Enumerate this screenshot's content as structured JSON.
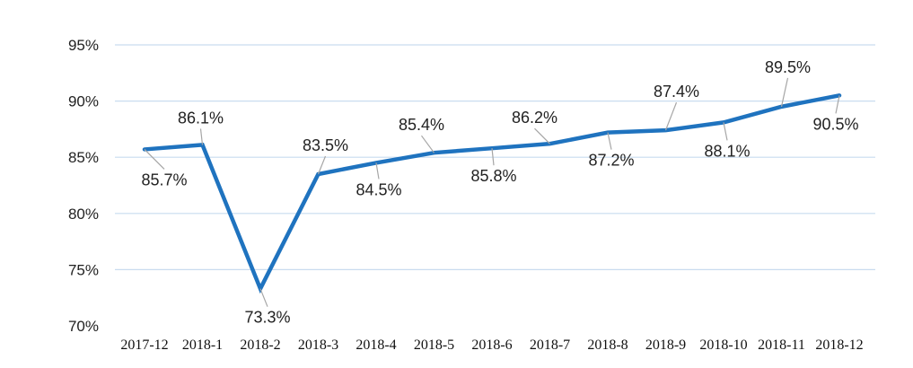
{
  "chart_data": {
    "type": "line",
    "title": "",
    "xlabel": "",
    "ylabel": "",
    "categories": [
      "2017-12",
      "2018-1",
      "2018-2",
      "2018-3",
      "2018-4",
      "2018-5",
      "2018-6",
      "2018-7",
      "2018-8",
      "2018-9",
      "2018-10",
      "2018-11",
      "2018-12"
    ],
    "series": [
      {
        "values": [
          85.7,
          86.1,
          73.3,
          83.5,
          84.5,
          85.4,
          85.8,
          86.2,
          87.2,
          87.4,
          88.1,
          89.5,
          90.5
        ],
        "data_labels": [
          "85.7%",
          "86.1%",
          "73.3%",
          "83.5%",
          "84.5%",
          "85.4%",
          "85.8%",
          "86.2%",
          "87.2%",
          "87.4%",
          "88.1%",
          "89.5%",
          "90.5%"
        ],
        "color": "#1f73bf"
      }
    ],
    "ylim": [
      70,
      95
    ],
    "yticks": [
      70,
      75,
      80,
      85,
      90,
      95
    ],
    "ytick_labels": [
      "70%",
      "75%",
      "80%",
      "85%",
      "90%",
      "95%"
    ],
    "grid": true,
    "legend": "none",
    "gridline_color": "#c9dcef"
  }
}
